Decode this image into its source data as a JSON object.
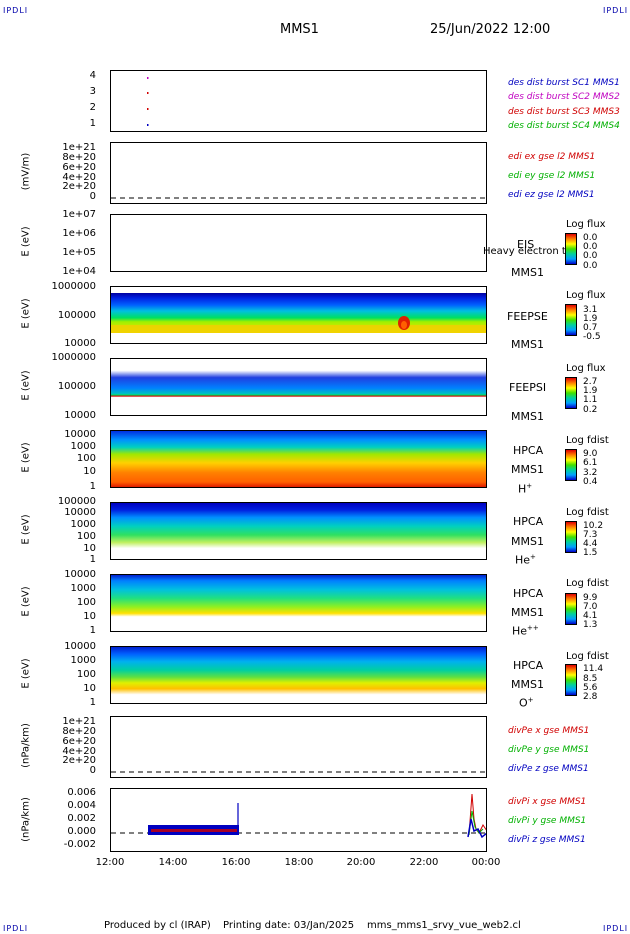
{
  "header": {
    "corner_label": "IPDLI",
    "spacecraft": "MMS1",
    "datetime": "25/Jun/2022 12:00"
  },
  "footer": {
    "produced_by": "Produced by cl (IRAP)",
    "printing_date": "Printing date: 03/Jan/2025",
    "script_name": "mms_mms1_srvy_vue_web2.cl"
  },
  "x_axis": {
    "ticks": [
      "12:00",
      "14:00",
      "16:00",
      "18:00",
      "20:00",
      "22:00",
      "00:00"
    ]
  },
  "panels": {
    "burst": {
      "yticks": [
        "4",
        "3",
        "2",
        "1"
      ],
      "legend": [
        {
          "text": "des dist burst SC1 MMS1",
          "color": "#0000c0"
        },
        {
          "text": "des dist burst SC2 MMS2",
          "color": "#c000c0"
        },
        {
          "text": "des dist burst SC3 MMS3",
          "color": "#d00000"
        },
        {
          "text": "des dist burst SC4 MMS4",
          "color": "#00b000"
        }
      ]
    },
    "edi": {
      "ylabel": "(mV/m)",
      "yticks": [
        "1e+21",
        "8e+20",
        "6e+20",
        "4e+20",
        "2e+20",
        "0"
      ],
      "legend": [
        {
          "text": "edi ex gse l2 MMS1",
          "color": "#d00000"
        },
        {
          "text": "edi ey gse l2 MMS1",
          "color": "#00b000"
        },
        {
          "text": "edi ez gse l2 MMS1",
          "color": "#0000c0"
        }
      ]
    },
    "eis": {
      "ylabel": "E (eV)",
      "yticks": [
        "1e+07",
        "1e+06",
        "1e+05",
        "1e+04"
      ],
      "instrument": "EIS",
      "overlay": "Heavy electron to",
      "spacecraft": "MMS1",
      "cbar_title": "Log flux",
      "cbar_values": [
        "0.0",
        "0.0",
        "0.0",
        "0.0"
      ]
    },
    "feepse": {
      "ylabel": "E (eV)",
      "yticks": [
        "1000000",
        "100000",
        "10000"
      ],
      "instrument": "FEEPSE",
      "spacecraft": "MMS1",
      "cbar_title": "Log flux",
      "cbar_values": [
        "3.1",
        "1.9",
        "0.7",
        "-0.5"
      ]
    },
    "feepsi": {
      "ylabel": "E (eV)",
      "yticks": [
        "1000000",
        "100000",
        "10000"
      ],
      "instrument": "FEEPSI",
      "spacecraft": "MMS1",
      "cbar_title": "Log flux",
      "cbar_values": [
        "2.7",
        "1.9",
        "1.1",
        "0.2"
      ]
    },
    "hpca_h": {
      "ylabel": "E (eV)",
      "yticks": [
        "10000",
        "1000",
        "100",
        "10",
        "1"
      ],
      "instrument": "HPCA",
      "spacecraft": "MMS1",
      "species": "H",
      "charge": "+",
      "cbar_title": "Log fdist",
      "cbar_values": [
        "9.0",
        "6.1",
        "3.2",
        "0.4"
      ]
    },
    "hpca_he": {
      "ylabel": "E (eV)",
      "yticks": [
        "100000",
        "10000",
        "1000",
        "100",
        "10",
        "1"
      ],
      "instrument": "HPCA",
      "spacecraft": "MMS1",
      "species": "He",
      "charge": "+",
      "cbar_title": "Log fdist",
      "cbar_values": [
        "10.2",
        "7.3",
        "4.4",
        "1.5"
      ]
    },
    "hpca_he2": {
      "ylabel": "E (eV)",
      "yticks": [
        "10000",
        "1000",
        "100",
        "10",
        "1"
      ],
      "instrument": "HPCA",
      "spacecraft": "MMS1",
      "species": "He",
      "charge": "++",
      "cbar_title": "Log fdist",
      "cbar_values": [
        "9.9",
        "7.0",
        "4.1",
        "1.3"
      ]
    },
    "hpca_o": {
      "ylabel": "E (eV)",
      "yticks": [
        "10000",
        "1000",
        "100",
        "10",
        "1"
      ],
      "instrument": "HPCA",
      "spacecraft": "MMS1",
      "species": "O",
      "charge": "+",
      "cbar_title": "Log fdist",
      "cbar_values": [
        "11.4",
        "8.5",
        "5.6",
        "2.8"
      ]
    },
    "divpe": {
      "ylabel": "(nPa/km)",
      "yticks": [
        "1e+21",
        "8e+20",
        "6e+20",
        "4e+20",
        "2e+20",
        "0"
      ],
      "legend": [
        {
          "text": "divPe x gse MMS1",
          "color": "#d00000"
        },
        {
          "text": "divPe y gse MMS1",
          "color": "#00b000"
        },
        {
          "text": "divPe z gse MMS1",
          "color": "#0000c0"
        }
      ]
    },
    "divpi": {
      "ylabel": "(nPa/km)",
      "yticks": [
        "0.006",
        "0.004",
        "0.002",
        "0.000",
        "-0.002"
      ],
      "legend": [
        {
          "text": "divPi x gse MMS1",
          "color": "#d00000"
        },
        {
          "text": "divPi y gse MMS1",
          "color": "#00b000"
        },
        {
          "text": "divPi z gse MMS1",
          "color": "#0000c0"
        }
      ]
    }
  },
  "chart_data": [
    {
      "type": "scatter",
      "panel": "burst",
      "series": [
        {
          "name": "des dist burst SC1 MMS1",
          "x": [
            "13:10"
          ],
          "y": [
            1
          ]
        },
        {
          "name": "des dist burst SC2 MMS2",
          "x": [
            "13:10"
          ],
          "y": [
            4
          ]
        },
        {
          "name": "des dist burst SC3 MMS3",
          "x": [
            "13:10"
          ],
          "y": [
            3
          ]
        },
        {
          "name": "des dist burst SC4 MMS4",
          "x": [],
          "y": []
        }
      ],
      "ylim": [
        0.5,
        4.5
      ]
    },
    {
      "type": "line",
      "panel": "edi",
      "series": [
        {
          "name": "edi ex gse l2 MMS1",
          "values": []
        },
        {
          "name": "edi ey gse l2 MMS1",
          "values": []
        },
        {
          "name": "edi ez gse l2 MMS1",
          "values": []
        }
      ],
      "ylim": [
        0,
        1e+21
      ]
    },
    {
      "type": "heatmap",
      "panel": "eis",
      "yscale": "log",
      "ylim": [
        10000.0,
        10000000.0
      ],
      "values": []
    },
    {
      "type": "heatmap",
      "panel": "feepse",
      "yscale": "log",
      "ylim": [
        10000.0,
        1000000.0
      ],
      "colorbar": [
        -0.5,
        3.1
      ]
    },
    {
      "type": "heatmap",
      "panel": "feepsi",
      "yscale": "log",
      "ylim": [
        10000.0,
        1000000.0
      ],
      "colorbar": [
        0.2,
        2.7
      ]
    },
    {
      "type": "heatmap",
      "panel": "hpca_h",
      "yscale": "log",
      "ylim": [
        1,
        30000.0
      ],
      "colorbar": [
        0.4,
        9.0
      ]
    },
    {
      "type": "heatmap",
      "panel": "hpca_he",
      "yscale": "log",
      "ylim": [
        1,
        100000.0
      ],
      "colorbar": [
        1.5,
        10.2
      ]
    },
    {
      "type": "heatmap",
      "panel": "hpca_he2",
      "yscale": "log",
      "ylim": [
        1,
        30000.0
      ],
      "colorbar": [
        1.3,
        9.9
      ]
    },
    {
      "type": "heatmap",
      "panel": "hpca_o",
      "yscale": "log",
      "ylim": [
        1,
        30000.0
      ],
      "colorbar": [
        2.8,
        11.4
      ]
    },
    {
      "type": "line",
      "panel": "divpe",
      "series": [
        {
          "name": "divPe x gse MMS1",
          "values": []
        },
        {
          "name": "divPe y gse MMS1",
          "values": []
        },
        {
          "name": "divPe z gse MMS1",
          "values": []
        }
      ],
      "ylim": [
        0,
        1e+21
      ]
    },
    {
      "type": "line",
      "panel": "divpi",
      "ylim": [
        -0.002,
        0.0065
      ],
      "series": [
        {
          "name": "divPi x gse MMS1",
          "x": [
            "13:10",
            "16:00",
            "23:40",
            "23:50",
            "00:00"
          ],
          "y": [
            0.0003,
            0.0003,
            0.006,
            0.003,
            0.001
          ]
        },
        {
          "name": "divPi y gse MMS1",
          "x": [
            "13:10",
            "16:00",
            "23:40",
            "00:00"
          ],
          "y": [
            0.0002,
            0.0002,
            0.003,
            0.0005
          ]
        },
        {
          "name": "divPi z gse MMS1",
          "x": [
            "13:10",
            "16:00",
            "16:05",
            "23:40",
            "00:00"
          ],
          "y": [
            0.0002,
            0.0002,
            0.0045,
            0.002,
            0.0
          ]
        }
      ]
    }
  ]
}
